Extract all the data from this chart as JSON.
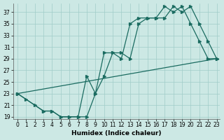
{
  "xlabel": "Humidex (Indice chaleur)",
  "bg_color": "#cce8e4",
  "grid_color": "#a0ccc8",
  "line_color": "#1a6b60",
  "xlim_min": -0.5,
  "xlim_max": 23.4,
  "ylim_min": 18.6,
  "ylim_max": 38.5,
  "xticks": [
    0,
    1,
    2,
    3,
    4,
    5,
    6,
    7,
    8,
    9,
    10,
    11,
    12,
    13,
    14,
    15,
    16,
    17,
    18,
    19,
    20,
    21,
    22,
    23
  ],
  "yticks": [
    19,
    21,
    23,
    25,
    27,
    29,
    31,
    33,
    35,
    37
  ],
  "curve1_x": [
    0,
    1,
    2,
    3,
    4,
    5,
    6,
    7,
    8,
    9,
    10,
    11,
    12,
    13,
    14,
    15,
    16,
    17,
    18,
    19,
    20,
    21,
    22,
    23
  ],
  "curve1_y": [
    23,
    22,
    21,
    20,
    20,
    19,
    19,
    19,
    19,
    23,
    26,
    30,
    30,
    29,
    35,
    36,
    36,
    36,
    38,
    37,
    38,
    35,
    32,
    29
  ],
  "curve2_x": [
    0,
    3,
    4,
    5,
    6,
    7,
    8,
    9,
    10,
    11,
    12,
    13,
    14,
    15,
    16,
    17,
    18,
    19,
    20,
    21,
    22,
    23
  ],
  "curve2_y": [
    23,
    20,
    20,
    19,
    19,
    19,
    26,
    23,
    30,
    30,
    29,
    35,
    36,
    36,
    36,
    38,
    37,
    38,
    35,
    32,
    29,
    29
  ],
  "curve3_x": [
    0,
    23
  ],
  "curve3_y": [
    23,
    29
  ]
}
